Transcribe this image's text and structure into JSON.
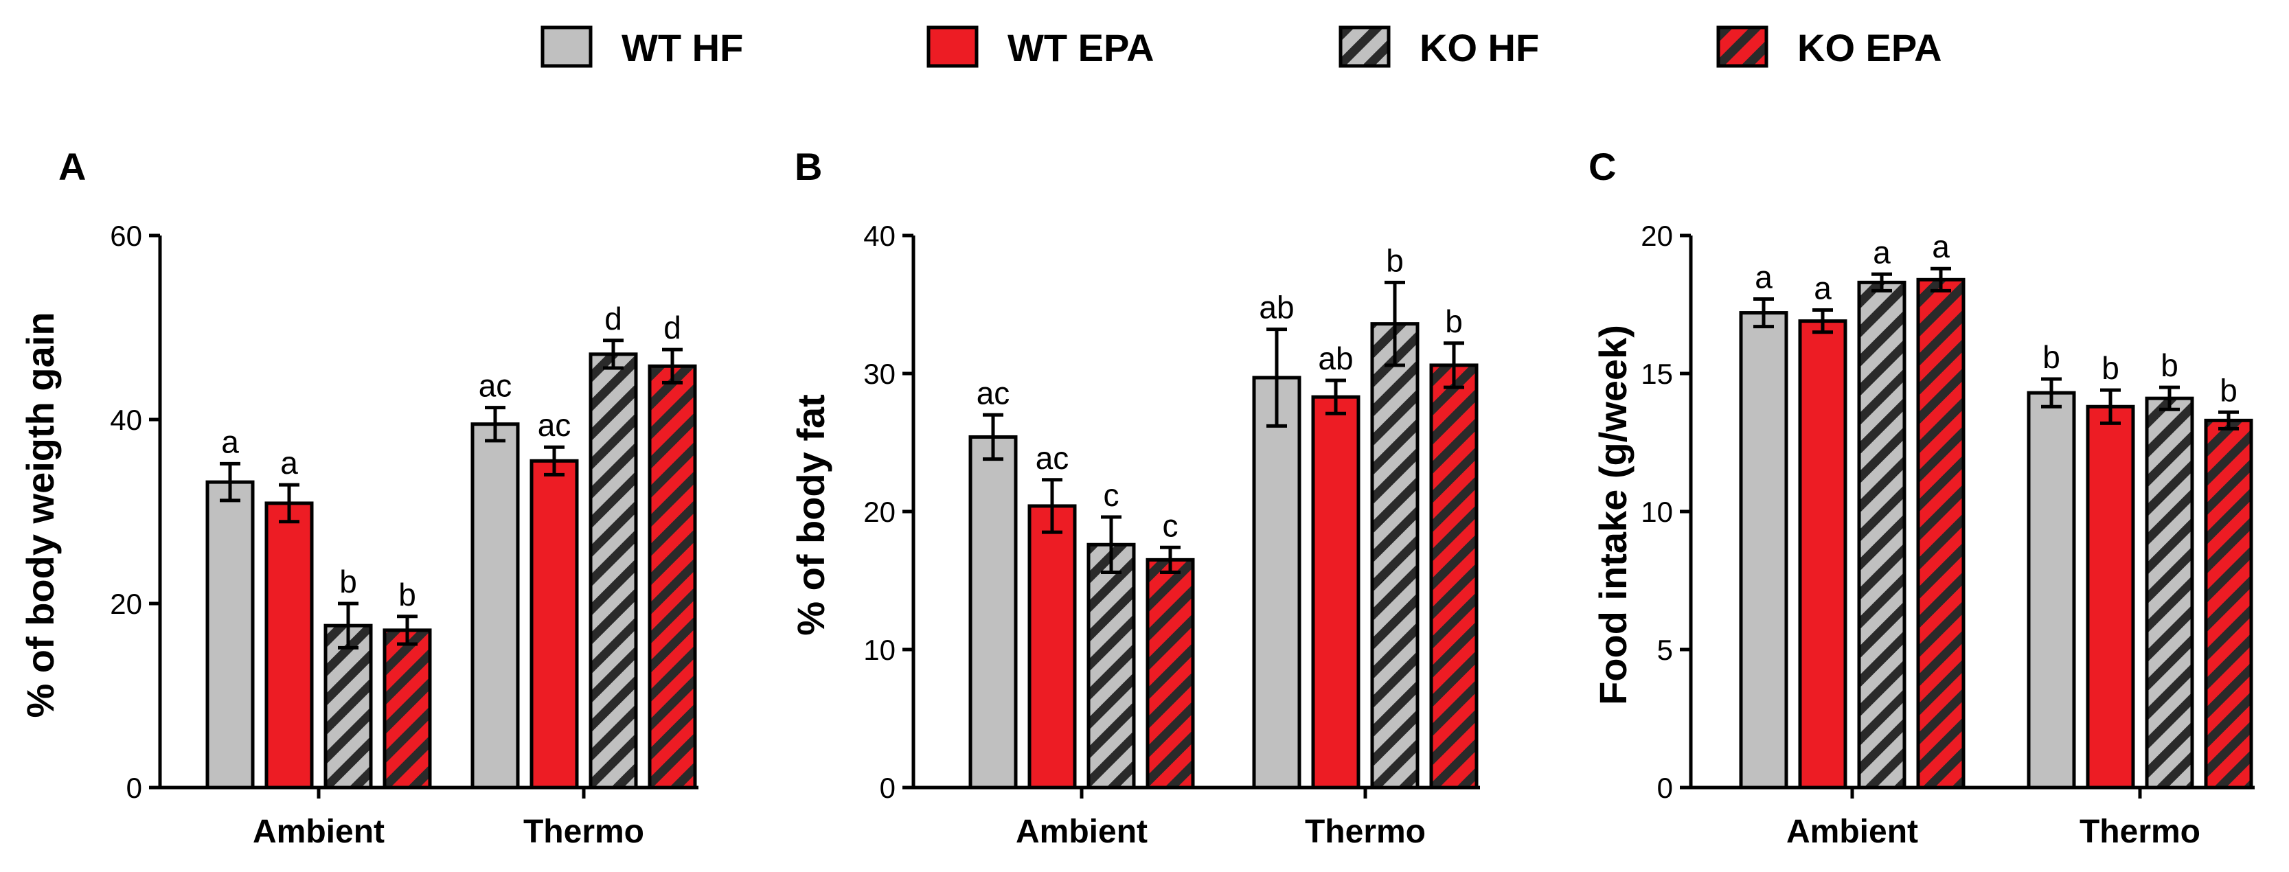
{
  "legend": [
    {
      "name": "WT HF",
      "color": "#c0c0c0",
      "hatched": false
    },
    {
      "name": "WT EPA",
      "color": "#ed1c24",
      "hatched": false
    },
    {
      "name": "KO HF",
      "color": "#c0c0c0",
      "hatched": true
    },
    {
      "name": "KO EPA",
      "color": "#ed1c24",
      "hatched": true
    }
  ],
  "chart_data": [
    {
      "type": "bar",
      "panel": "A",
      "ylabel": "% of body weigth gain",
      "ylim": [
        0,
        60
      ],
      "yticks": [
        0,
        20,
        40,
        60
      ],
      "categories": [
        "Ambient",
        "Thermo"
      ],
      "series": [
        {
          "name": "WT HF",
          "values": [
            33.2,
            39.5
          ],
          "errors": [
            2.0,
            1.8
          ],
          "letters": [
            "a",
            "ac"
          ]
        },
        {
          "name": "WT EPA",
          "values": [
            30.9,
            35.5
          ],
          "errors": [
            2.0,
            1.5
          ],
          "letters": [
            "a",
            "ac"
          ]
        },
        {
          "name": "KO HF",
          "values": [
            17.6,
            47.1
          ],
          "errors": [
            2.4,
            1.5
          ],
          "letters": [
            "b",
            "d"
          ]
        },
        {
          "name": "KO EPA",
          "values": [
            17.1,
            45.8
          ],
          "errors": [
            1.5,
            1.8
          ],
          "letters": [
            "b",
            "d"
          ]
        }
      ]
    },
    {
      "type": "bar",
      "panel": "B",
      "ylabel": "% of body fat",
      "ylim": [
        0,
        40
      ],
      "yticks": [
        0,
        10,
        20,
        30,
        40
      ],
      "categories": [
        "Ambient",
        "Thermo"
      ],
      "series": [
        {
          "name": "WT HF",
          "values": [
            25.4,
            29.7
          ],
          "errors": [
            1.6,
            3.5
          ],
          "letters": [
            "ac",
            "ab"
          ]
        },
        {
          "name": "WT EPA",
          "values": [
            20.4,
            28.3
          ],
          "errors": [
            1.9,
            1.2
          ],
          "letters": [
            "ac",
            "ab"
          ]
        },
        {
          "name": "KO HF",
          "values": [
            17.6,
            33.6
          ],
          "errors": [
            2.0,
            3.0
          ],
          "letters": [
            "c",
            "b"
          ]
        },
        {
          "name": "KO EPA",
          "values": [
            16.5,
            30.6
          ],
          "errors": [
            0.9,
            1.6
          ],
          "letters": [
            "c",
            "b"
          ]
        }
      ]
    },
    {
      "type": "bar",
      "panel": "C",
      "ylabel": "Food intake (g/week)",
      "ylim": [
        0,
        20
      ],
      "yticks": [
        0,
        5,
        10,
        15,
        20
      ],
      "categories": [
        "Ambient",
        "Thermo"
      ],
      "series": [
        {
          "name": "WT HF",
          "values": [
            17.2,
            14.3
          ],
          "errors": [
            0.5,
            0.5
          ],
          "letters": [
            "a",
            "b"
          ]
        },
        {
          "name": "WT EPA",
          "values": [
            16.9,
            13.8
          ],
          "errors": [
            0.4,
            0.6
          ],
          "letters": [
            "a",
            "b"
          ]
        },
        {
          "name": "KO HF",
          "values": [
            18.3,
            14.1
          ],
          "errors": [
            0.3,
            0.4
          ],
          "letters": [
            "a",
            "b"
          ]
        },
        {
          "name": "KO EPA",
          "values": [
            18.4,
            13.3
          ],
          "errors": [
            0.4,
            0.3
          ],
          "letters": [
            "a",
            "b"
          ]
        }
      ]
    }
  ]
}
